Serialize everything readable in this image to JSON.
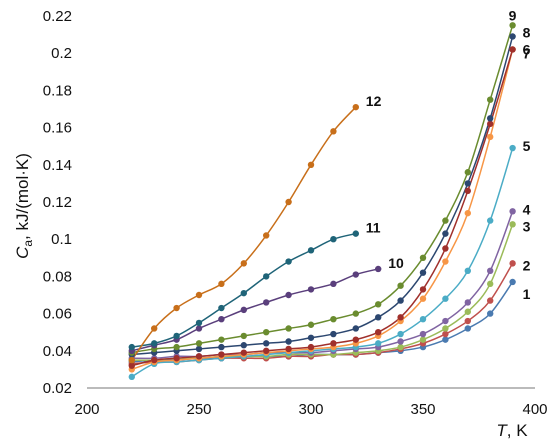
{
  "chart_data": {
    "type": "line",
    "title": "",
    "ylabel": {
      "symbol": "C",
      "subscript": "a",
      "unit": ", kJ/(mol·K)"
    },
    "xlabel": {
      "symbol": "T",
      "unit": ", K"
    },
    "xlim": [
      200,
      400
    ],
    "ylim": [
      0.02,
      0.22
    ],
    "xticks": [
      200,
      250,
      300,
      350,
      400
    ],
    "yticks": [
      "0.02",
      "0.04",
      "0.06",
      "0.08",
      "0.1",
      "0.12",
      "0.14",
      "0.16",
      "0.18",
      "0.2",
      "0.22"
    ],
    "grid": false,
    "legend": "none",
    "series": [
      {
        "name": "1",
        "color": "#4a7ab0",
        "x": [
          220,
          230,
          240,
          250,
          260,
          270,
          280,
          290,
          300,
          310,
          320,
          330,
          340,
          350,
          360,
          370,
          380,
          390
        ],
        "y": [
          0.034,
          0.035,
          0.035,
          0.036,
          0.036,
          0.037,
          0.037,
          0.037,
          0.038,
          0.038,
          0.038,
          0.039,
          0.04,
          0.042,
          0.046,
          0.052,
          0.06,
          0.077
        ]
      },
      {
        "name": "2",
        "color": "#c0504d",
        "x": [
          220,
          230,
          240,
          250,
          260,
          270,
          280,
          290,
          300,
          310,
          320,
          330,
          340,
          350,
          360,
          370,
          380,
          390
        ],
        "y": [
          0.033,
          0.034,
          0.034,
          0.035,
          0.036,
          0.036,
          0.036,
          0.037,
          0.037,
          0.038,
          0.038,
          0.039,
          0.041,
          0.044,
          0.049,
          0.056,
          0.067,
          0.087
        ]
      },
      {
        "name": "3",
        "color": "#9bbb59",
        "x": [
          220,
          230,
          240,
          250,
          260,
          270,
          280,
          290,
          300,
          310,
          320,
          330,
          340,
          350,
          360,
          370,
          380,
          390
        ],
        "y": [
          0.035,
          0.035,
          0.036,
          0.036,
          0.037,
          0.037,
          0.037,
          0.038,
          0.038,
          0.038,
          0.039,
          0.04,
          0.042,
          0.046,
          0.052,
          0.061,
          0.076,
          0.108
        ]
      },
      {
        "name": "4",
        "color": "#8064a2",
        "x": [
          220,
          230,
          240,
          250,
          260,
          270,
          280,
          290,
          300,
          310,
          320,
          330,
          340,
          350,
          360,
          370,
          380,
          390
        ],
        "y": [
          0.036,
          0.036,
          0.037,
          0.037,
          0.038,
          0.038,
          0.039,
          0.039,
          0.039,
          0.04,
          0.041,
          0.042,
          0.045,
          0.049,
          0.056,
          0.066,
          0.083,
          0.115
        ]
      },
      {
        "name": "5",
        "color": "#4bacc6",
        "x": [
          220,
          230,
          240,
          250,
          260,
          270,
          280,
          290,
          300,
          310,
          320,
          330,
          340,
          350,
          360,
          370,
          380,
          390
        ],
        "y": [
          0.026,
          0.033,
          0.034,
          0.035,
          0.036,
          0.037,
          0.038,
          0.039,
          0.04,
          0.041,
          0.042,
          0.044,
          0.049,
          0.057,
          0.068,
          0.083,
          0.11,
          0.149
        ]
      },
      {
        "name": "6",
        "color": "#f79646",
        "x": [
          220,
          230,
          240,
          250,
          260,
          270,
          280,
          290,
          300,
          310,
          320,
          330,
          340,
          350,
          360,
          370,
          380,
          390
        ],
        "y": [
          0.03,
          0.034,
          0.035,
          0.036,
          0.037,
          0.038,
          0.039,
          0.04,
          0.041,
          0.042,
          0.044,
          0.048,
          0.056,
          0.068,
          0.088,
          0.114,
          0.155,
          0.202
        ]
      },
      {
        "name": "7",
        "color": "#a0302c",
        "x": [
          220,
          230,
          240,
          250,
          260,
          270,
          280,
          290,
          300,
          310,
          320,
          330,
          340,
          350,
          360,
          370,
          380,
          390
        ],
        "y": [
          0.032,
          0.035,
          0.036,
          0.037,
          0.038,
          0.039,
          0.04,
          0.041,
          0.042,
          0.044,
          0.046,
          0.05,
          0.058,
          0.073,
          0.095,
          0.126,
          0.162,
          0.202
        ]
      },
      {
        "name": "8",
        "color": "#2c4770",
        "x": [
          220,
          230,
          240,
          250,
          260,
          270,
          280,
          290,
          300,
          310,
          320,
          330,
          340,
          350,
          360,
          370,
          380,
          390
        ],
        "y": [
          0.038,
          0.039,
          0.04,
          0.041,
          0.042,
          0.043,
          0.044,
          0.045,
          0.047,
          0.049,
          0.052,
          0.058,
          0.067,
          0.082,
          0.103,
          0.13,
          0.165,
          0.209
        ]
      },
      {
        "name": "9",
        "color": "#6a8c2f",
        "x": [
          220,
          230,
          240,
          250,
          260,
          270,
          280,
          290,
          300,
          310,
          320,
          330,
          340,
          350,
          360,
          370,
          380,
          390
        ],
        "y": [
          0.039,
          0.041,
          0.042,
          0.044,
          0.046,
          0.048,
          0.05,
          0.052,
          0.054,
          0.057,
          0.06,
          0.065,
          0.075,
          0.09,
          0.11,
          0.136,
          0.175,
          0.215
        ]
      },
      {
        "name": "10",
        "color": "#5a3f7c",
        "x": [
          220,
          230,
          240,
          250,
          260,
          270,
          280,
          290,
          300,
          310,
          320,
          330
        ],
        "y": [
          0.04,
          0.043,
          0.046,
          0.052,
          0.057,
          0.062,
          0.066,
          0.07,
          0.073,
          0.076,
          0.081,
          0.084
        ]
      },
      {
        "name": "11",
        "color": "#1f6478",
        "x": [
          220,
          230,
          240,
          250,
          260,
          270,
          280,
          290,
          300,
          310,
          320
        ],
        "y": [
          0.042,
          0.044,
          0.048,
          0.055,
          0.063,
          0.071,
          0.08,
          0.088,
          0.094,
          0.1,
          0.103
        ]
      },
      {
        "name": "12",
        "color": "#c86f1a",
        "x": [
          220,
          230,
          240,
          250,
          260,
          270,
          280,
          290,
          300,
          310,
          320
        ],
        "y": [
          0.035,
          0.052,
          0.063,
          0.07,
          0.076,
          0.087,
          0.102,
          0.12,
          0.14,
          0.158,
          0.171
        ]
      }
    ]
  }
}
